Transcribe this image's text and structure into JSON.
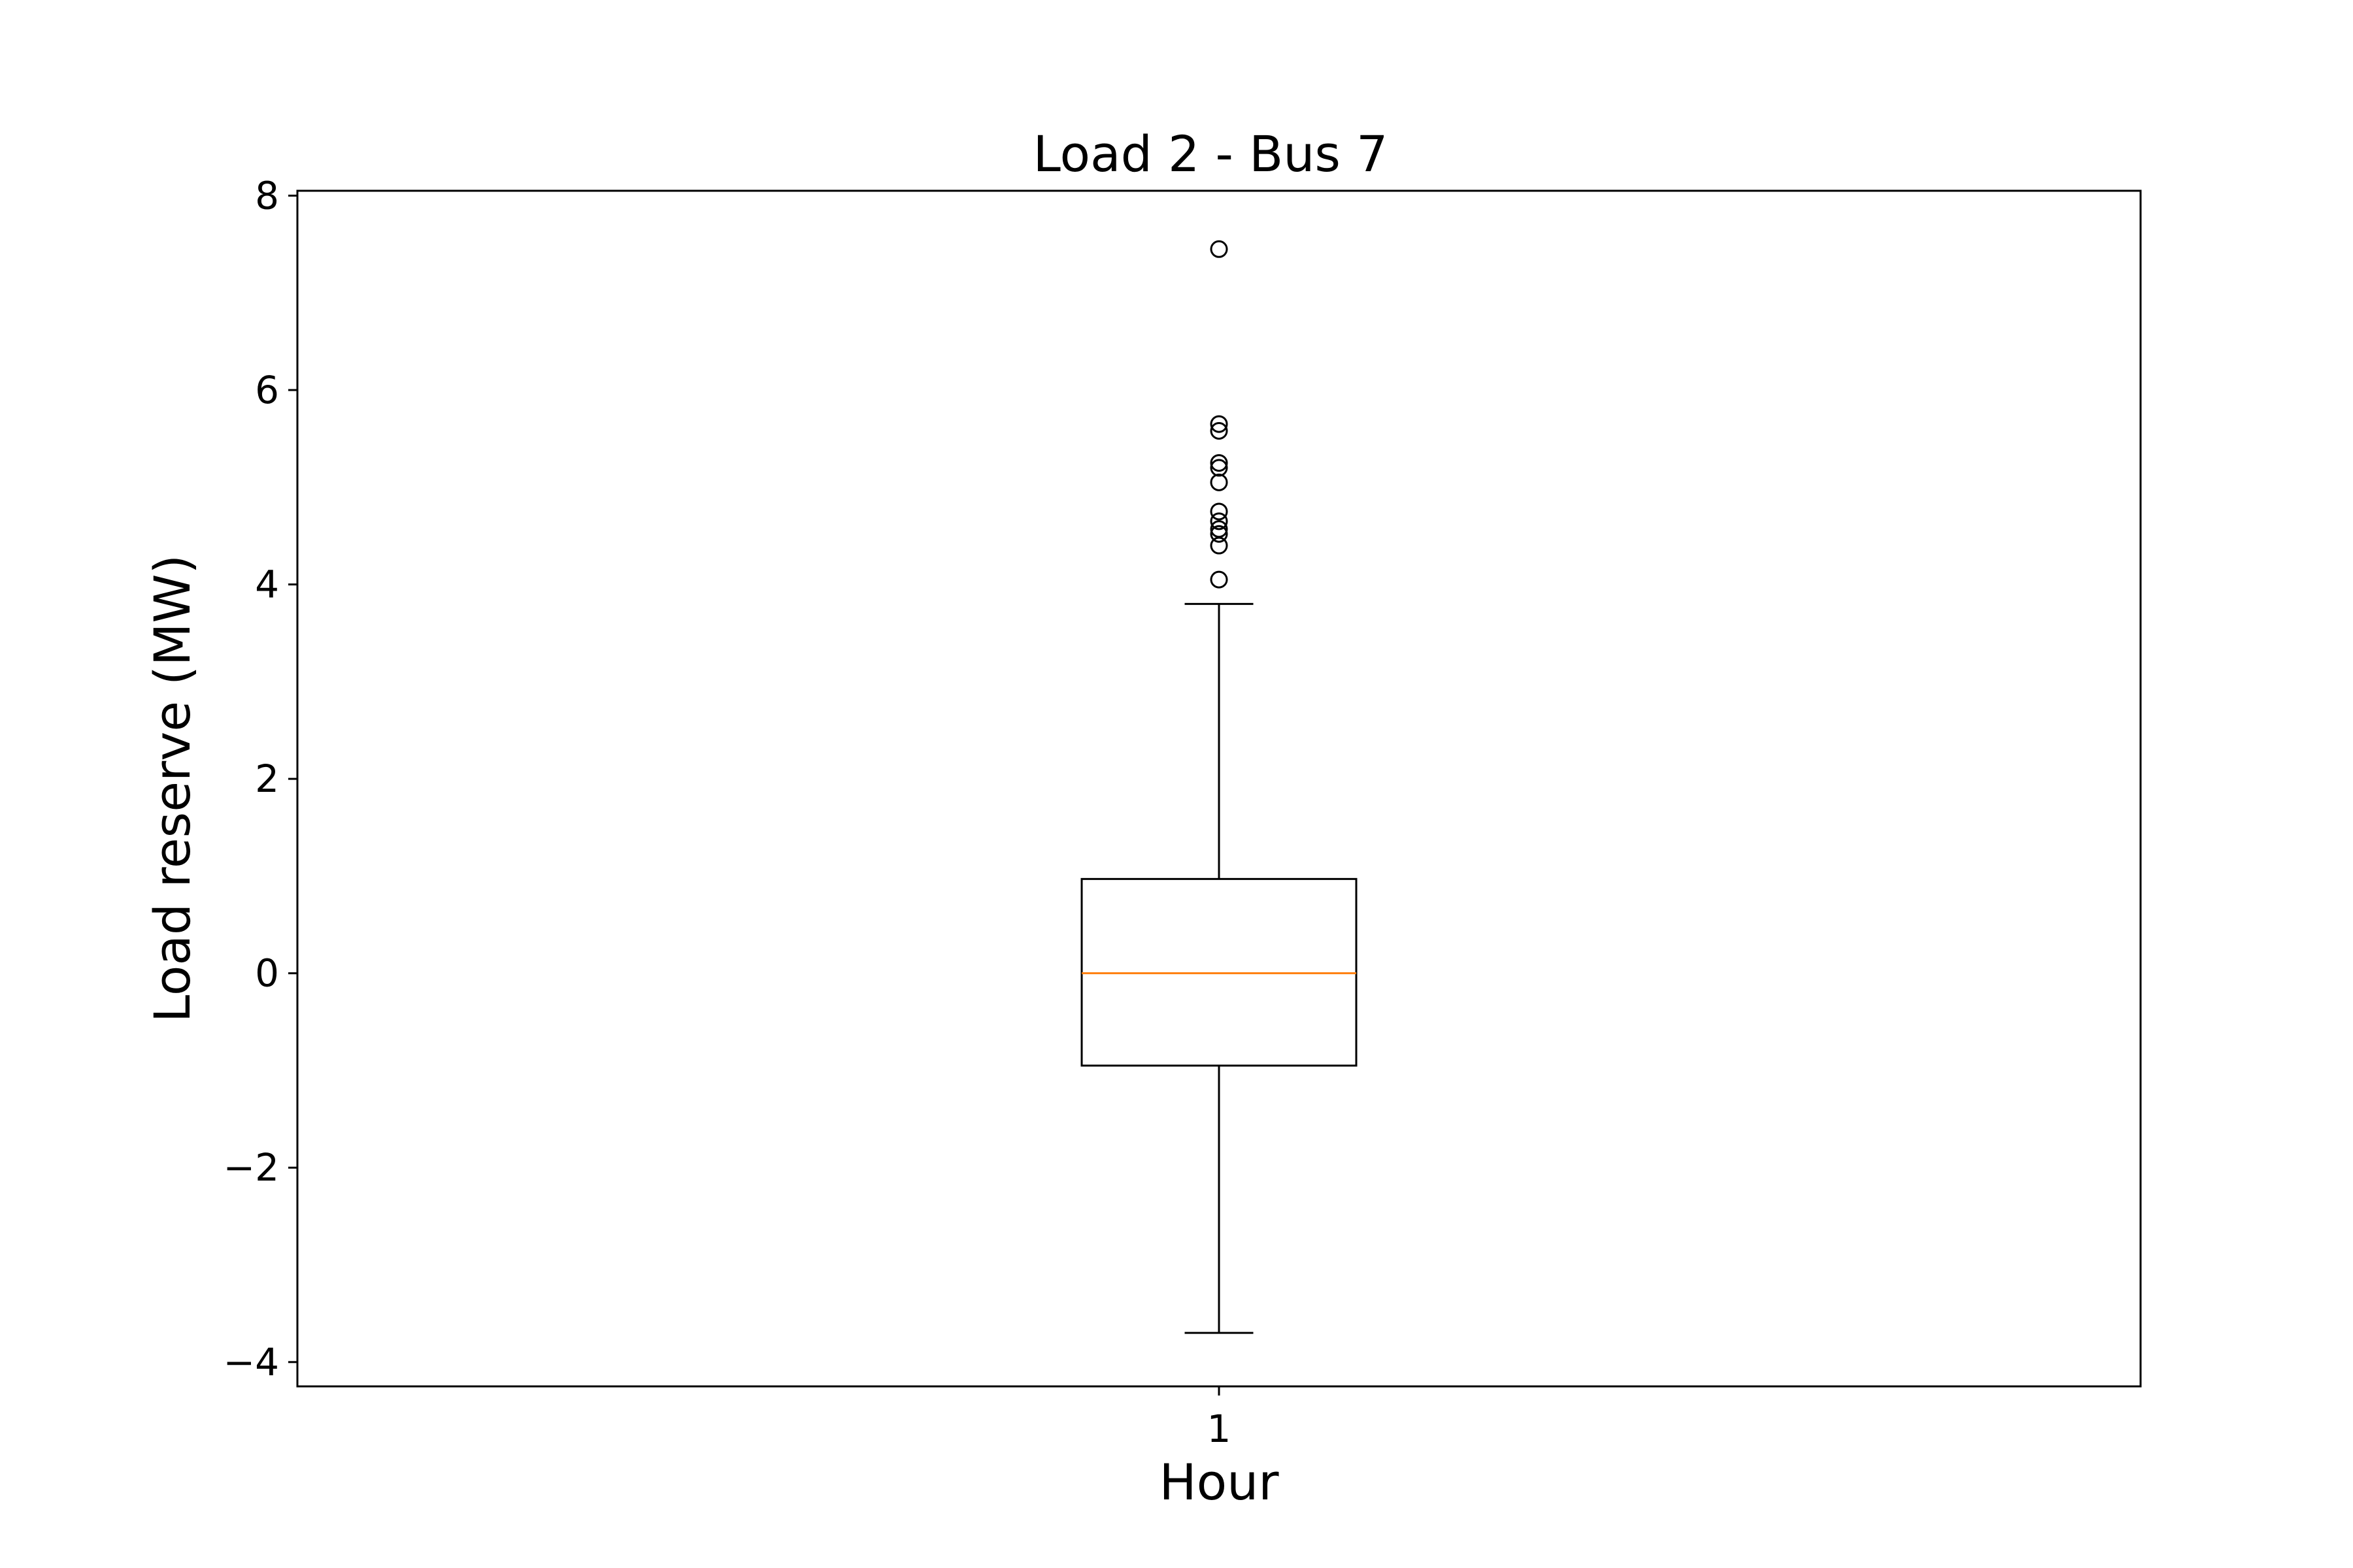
{
  "chart_data": {
    "type": "box",
    "title": "Load 2 - Bus 7",
    "xlabel": "Hour",
    "ylabel": "Load reserve (MW)",
    "categories": [
      "1"
    ],
    "ylim": [
      -4.25,
      8.05
    ],
    "yticks": [
      8,
      6,
      4,
      2,
      0,
      -2,
      -4
    ],
    "ytick_labels": [
      "8",
      "6",
      "4",
      "2",
      "0",
      "−2",
      "−4"
    ],
    "grid": false,
    "boxes": [
      {
        "category": "1",
        "whisker_low": -3.7,
        "q1": -0.95,
        "median": 0.0,
        "q3": 0.97,
        "whisker_high": 3.8,
        "outliers": [
          7.45,
          5.65,
          5.58,
          5.25,
          5.2,
          5.05,
          4.75,
          4.65,
          4.57,
          4.52,
          4.4,
          4.05
        ]
      }
    ],
    "colors": {
      "box": "#000000",
      "median": "#ff7f0e",
      "outlier": "#000000"
    }
  }
}
